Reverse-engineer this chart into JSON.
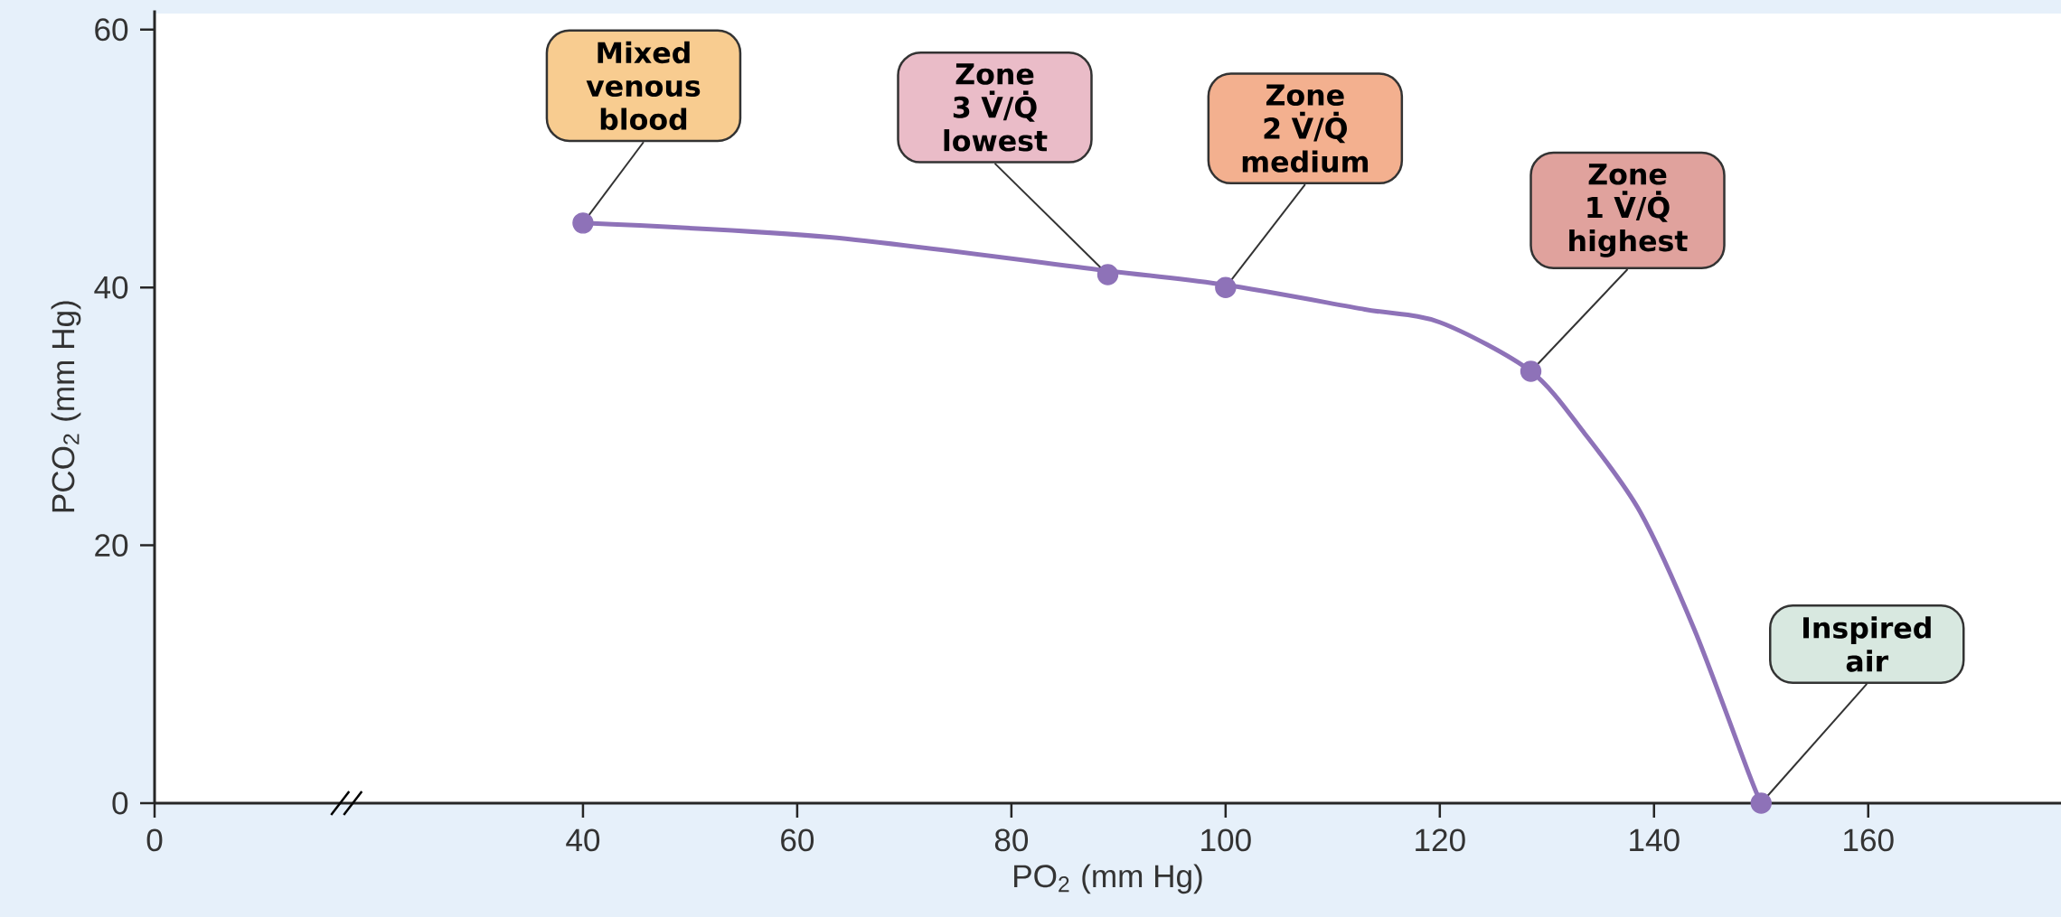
{
  "chart_data": {
    "type": "line",
    "xlabel": "PO$_{2}$ (mm Hg)",
    "ylabel": "PCO$_{2}$ (mm Hg)",
    "xlim": [
      0,
      178
    ],
    "ylim": [
      0,
      61.5
    ],
    "xticks": [
      0,
      40,
      60,
      80,
      100,
      120,
      140,
      160
    ],
    "yticks": [
      0,
      20,
      40,
      60
    ],
    "marker": "circle",
    "series": [
      {
        "marker": "none",
        "color": "#8e72b8",
        "x": [
          40,
          63,
          89,
          100,
          113,
          120,
          128.5,
          133.5,
          138.7,
          143.8,
          148.9,
          150
        ],
        "values": [
          45,
          43.9,
          41.3,
          40.2,
          38.3,
          37.3,
          33.5,
          28.7,
          22.6,
          13.4,
          2.2,
          0
        ]
      },
      {
        "type": "scatter",
        "color": "#8e72b8",
        "x": [
          40,
          89,
          100,
          128.5,
          150
        ],
        "values": [
          45,
          41,
          40,
          33.5,
          0
        ]
      }
    ],
    "annotations": [
      {
        "text": "Mixed venous blood",
        "x": 40,
        "y": 45
      },
      {
        "text": "Zone 3 V̇/Q̇ lowest",
        "x": 89,
        "y": 41
      },
      {
        "text": "Zone 2 V̇/Q̇ medium",
        "x": 100,
        "y": 40
      },
      {
        "text": "Zone 1 V̇/Q̇ highest",
        "x": 128.5,
        "y": 33.5
      },
      {
        "text": "Inspired air",
        "x": 150,
        "y": 0
      }
    ]
  }
}
